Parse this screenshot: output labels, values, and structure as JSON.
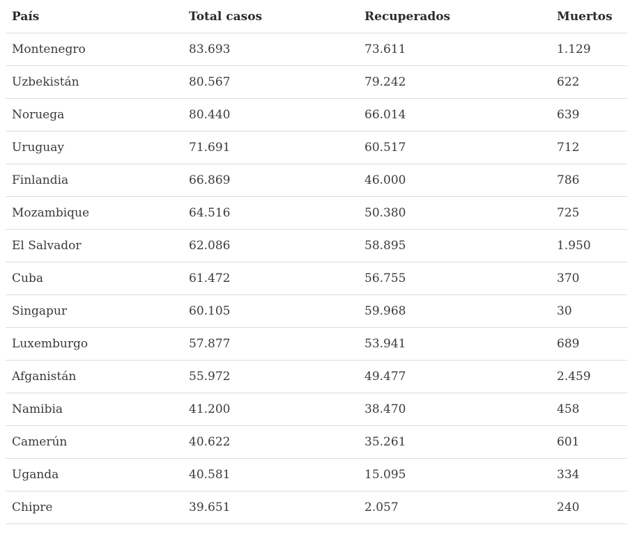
{
  "table": {
    "headers": [
      "País",
      "Total casos",
      "Recuperados",
      "Muertos"
    ],
    "rows": [
      [
        "Montenegro",
        "83.693",
        "73.611",
        "1.129"
      ],
      [
        "Uzbekistán",
        "80.567",
        "79.242",
        "622"
      ],
      [
        "Noruega",
        "80.440",
        "66.014",
        "639"
      ],
      [
        "Uruguay",
        "71.691",
        "60.517",
        "712"
      ],
      [
        "Finlandia",
        "66.869",
        "46.000",
        "786"
      ],
      [
        "Mozambique",
        "64.516",
        "50.380",
        "725"
      ],
      [
        "El Salvador",
        "62.086",
        "58.895",
        "1.950"
      ],
      [
        "Cuba",
        "61.472",
        "56.755",
        "370"
      ],
      [
        "Singapur",
        "60.105",
        "59.968",
        "30"
      ],
      [
        "Luxemburgo",
        "57.877",
        "53.941",
        "689"
      ],
      [
        "Afganistán",
        "55.972",
        "49.477",
        "2.459"
      ],
      [
        "Namibia",
        "41.200",
        "38.470",
        "458"
      ],
      [
        "Camerún",
        "40.622",
        "35.261",
        "601"
      ],
      [
        "Uganda",
        "40.581",
        "15.095",
        "334"
      ],
      [
        "Chipre",
        "39.651",
        "2.057",
        "240"
      ]
    ]
  }
}
